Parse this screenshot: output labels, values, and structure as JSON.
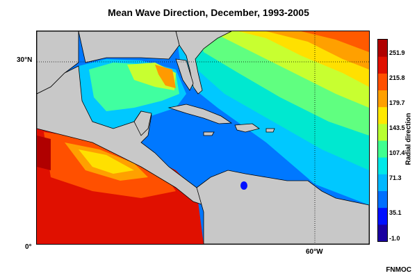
{
  "title": "Mean Wave Direction, December, 1993-2005",
  "lat_labels": {
    "lat30": "30°N",
    "lat0": "0°"
  },
  "lon_labels": {
    "lon60w": "60°W"
  },
  "colorbar": {
    "label": "Radial direction",
    "ticks": [
      "251.9",
      "215.8",
      "179.7",
      "143.5",
      "107.4",
      "71.3",
      "35.1",
      "-1.0"
    ],
    "colors": [
      "#1a00a0",
      "#0010ff",
      "#0070ff",
      "#00b8ff",
      "#00e8e8",
      "#40ff90",
      "#b8ff30",
      "#ffe800",
      "#ffa000",
      "#ff5000",
      "#e01000",
      "#b00000"
    ]
  },
  "credit": "FNMOC",
  "colors": {
    "land": "#c8c8c8",
    "frame": "#000000"
  }
}
